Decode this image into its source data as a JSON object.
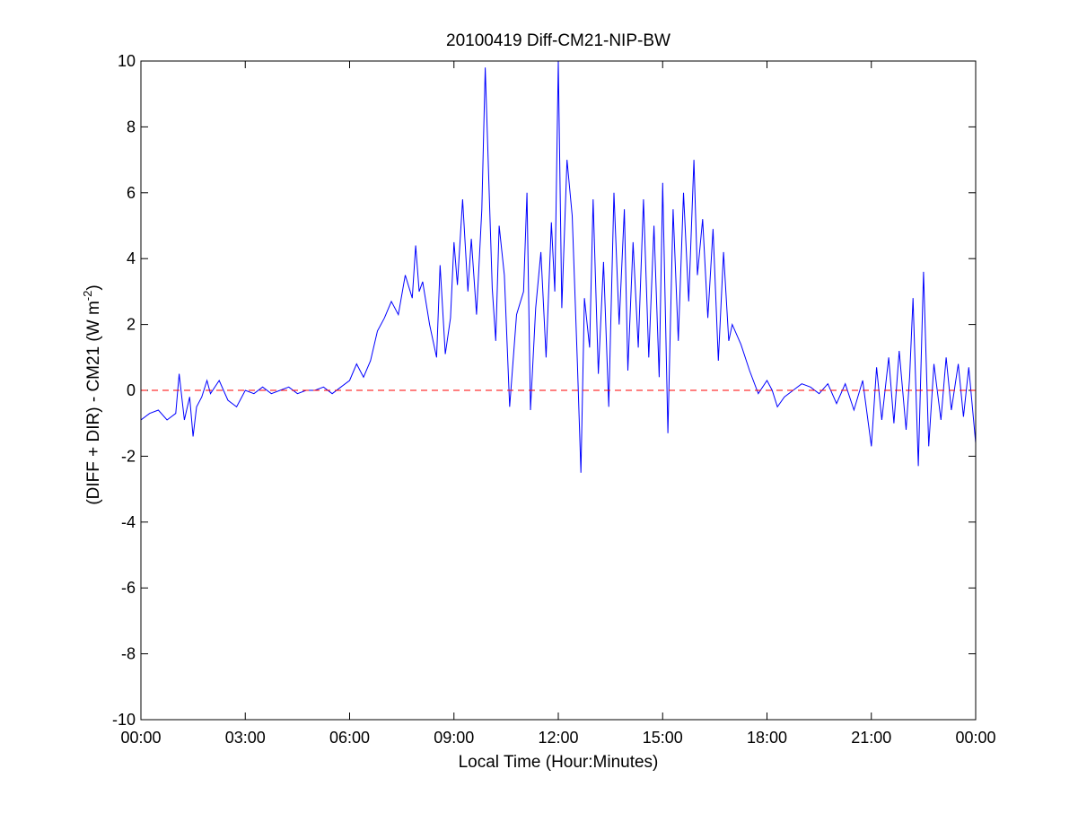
{
  "chart_data": {
    "type": "line",
    "title": "20100419 Diff-CM21-NIP-BW",
    "xlabel": "Local Time (Hour:Minutes)",
    "ylabel_main": "(DIFF + DIR) - CM21 (W m",
    "ylabel_sup": "-2",
    "ylabel_close": ")",
    "xlim": [
      0,
      24
    ],
    "ylim": [
      -10,
      10
    ],
    "x_unit": "hours",
    "x_ticks": [
      0,
      3,
      6,
      9,
      12,
      15,
      18,
      21,
      24
    ],
    "x_tick_labels": [
      "00:00",
      "03:00",
      "06:00",
      "09:00",
      "12:00",
      "15:00",
      "18:00",
      "21:00",
      "00:00"
    ],
    "y_ticks": [
      -10,
      -8,
      -6,
      -4,
      -2,
      0,
      2,
      4,
      6,
      8,
      10
    ],
    "y_tick_labels": [
      "-10",
      "-8",
      "-6",
      "-4",
      "-2",
      "0",
      "2",
      "4",
      "6",
      "8",
      "10"
    ],
    "grid": false,
    "series": [
      {
        "color": "#0000ff",
        "x": [
          0.0,
          0.25,
          0.5,
          0.75,
          1.0,
          1.1,
          1.25,
          1.4,
          1.5,
          1.6,
          1.75,
          1.9,
          2.0,
          2.25,
          2.5,
          2.75,
          3.0,
          3.25,
          3.5,
          3.75,
          4.0,
          4.25,
          4.5,
          4.75,
          5.0,
          5.25,
          5.5,
          5.75,
          6.0,
          6.2,
          6.4,
          6.6,
          6.8,
          7.0,
          7.2,
          7.4,
          7.6,
          7.8,
          7.9,
          8.0,
          8.1,
          8.3,
          8.5,
          8.6,
          8.75,
          8.9,
          9.0,
          9.1,
          9.25,
          9.4,
          9.5,
          9.65,
          9.8,
          9.9,
          10.1,
          10.2,
          10.3,
          10.45,
          10.6,
          10.8,
          11.0,
          11.1,
          11.2,
          11.35,
          11.5,
          11.65,
          11.8,
          11.9,
          12.0,
          12.1,
          12.25,
          12.4,
          12.55,
          12.65,
          12.75,
          12.9,
          13.0,
          13.15,
          13.3,
          13.45,
          13.6,
          13.75,
          13.9,
          14.0,
          14.15,
          14.3,
          14.45,
          14.6,
          14.75,
          14.9,
          15.0,
          15.15,
          15.3,
          15.45,
          15.6,
          15.75,
          15.9,
          16.0,
          16.15,
          16.3,
          16.45,
          16.6,
          16.75,
          16.9,
          17.0,
          17.25,
          17.5,
          17.75,
          18.0,
          18.15,
          18.3,
          18.5,
          18.75,
          19.0,
          19.25,
          19.5,
          19.75,
          20.0,
          20.25,
          20.5,
          20.75,
          21.0,
          21.15,
          21.3,
          21.5,
          21.65,
          21.8,
          22.0,
          22.1,
          22.2,
          22.35,
          22.5,
          22.65,
          22.8,
          23.0,
          23.15,
          23.3,
          23.5,
          23.65,
          23.8,
          24.0
        ],
        "y": [
          -0.9,
          -0.7,
          -0.6,
          -0.9,
          -0.7,
          0.5,
          -0.9,
          -0.2,
          -1.4,
          -0.5,
          -0.2,
          0.3,
          -0.1,
          0.3,
          -0.3,
          -0.5,
          0.0,
          -0.1,
          0.1,
          -0.1,
          0.0,
          0.1,
          -0.1,
          0.0,
          0.0,
          0.1,
          -0.1,
          0.1,
          0.3,
          0.8,
          0.4,
          0.9,
          1.8,
          2.2,
          2.7,
          2.3,
          3.5,
          2.8,
          4.4,
          3.0,
          3.3,
          2.0,
          1.0,
          3.8,
          1.1,
          2.2,
          4.5,
          3.2,
          5.8,
          3.0,
          4.6,
          2.3,
          5.5,
          9.8,
          3.1,
          1.5,
          5.0,
          3.5,
          -0.5,
          2.3,
          3.0,
          6.0,
          -0.6,
          2.5,
          4.2,
          1.0,
          5.1,
          3.0,
          10.0,
          2.5,
          7.0,
          5.3,
          0.8,
          -2.5,
          2.8,
          1.3,
          5.8,
          0.5,
          3.9,
          -0.5,
          6.0,
          2.0,
          5.5,
          0.6,
          4.5,
          1.3,
          5.8,
          1.0,
          5.0,
          0.4,
          6.3,
          -1.3,
          5.5,
          1.5,
          6.0,
          2.7,
          7.0,
          3.5,
          5.2,
          2.2,
          4.9,
          0.9,
          4.2,
          1.5,
          2.0,
          1.4,
          0.6,
          -0.1,
          0.3,
          0.0,
          -0.5,
          -0.2,
          0.0,
          0.2,
          0.1,
          -0.1,
          0.2,
          -0.4,
          0.2,
          -0.6,
          0.3,
          -1.7,
          0.7,
          -0.9,
          1.0,
          -1.0,
          1.2,
          -1.2,
          0.4,
          2.8,
          -2.3,
          3.6,
          -1.7,
          0.8,
          -0.9,
          1.0,
          -0.6,
          0.8,
          -0.8,
          0.7,
          -1.6
        ]
      },
      {
        "color": "#ff0000",
        "style": "dashed",
        "x": [
          0,
          24
        ],
        "y": [
          0,
          0
        ]
      }
    ]
  }
}
